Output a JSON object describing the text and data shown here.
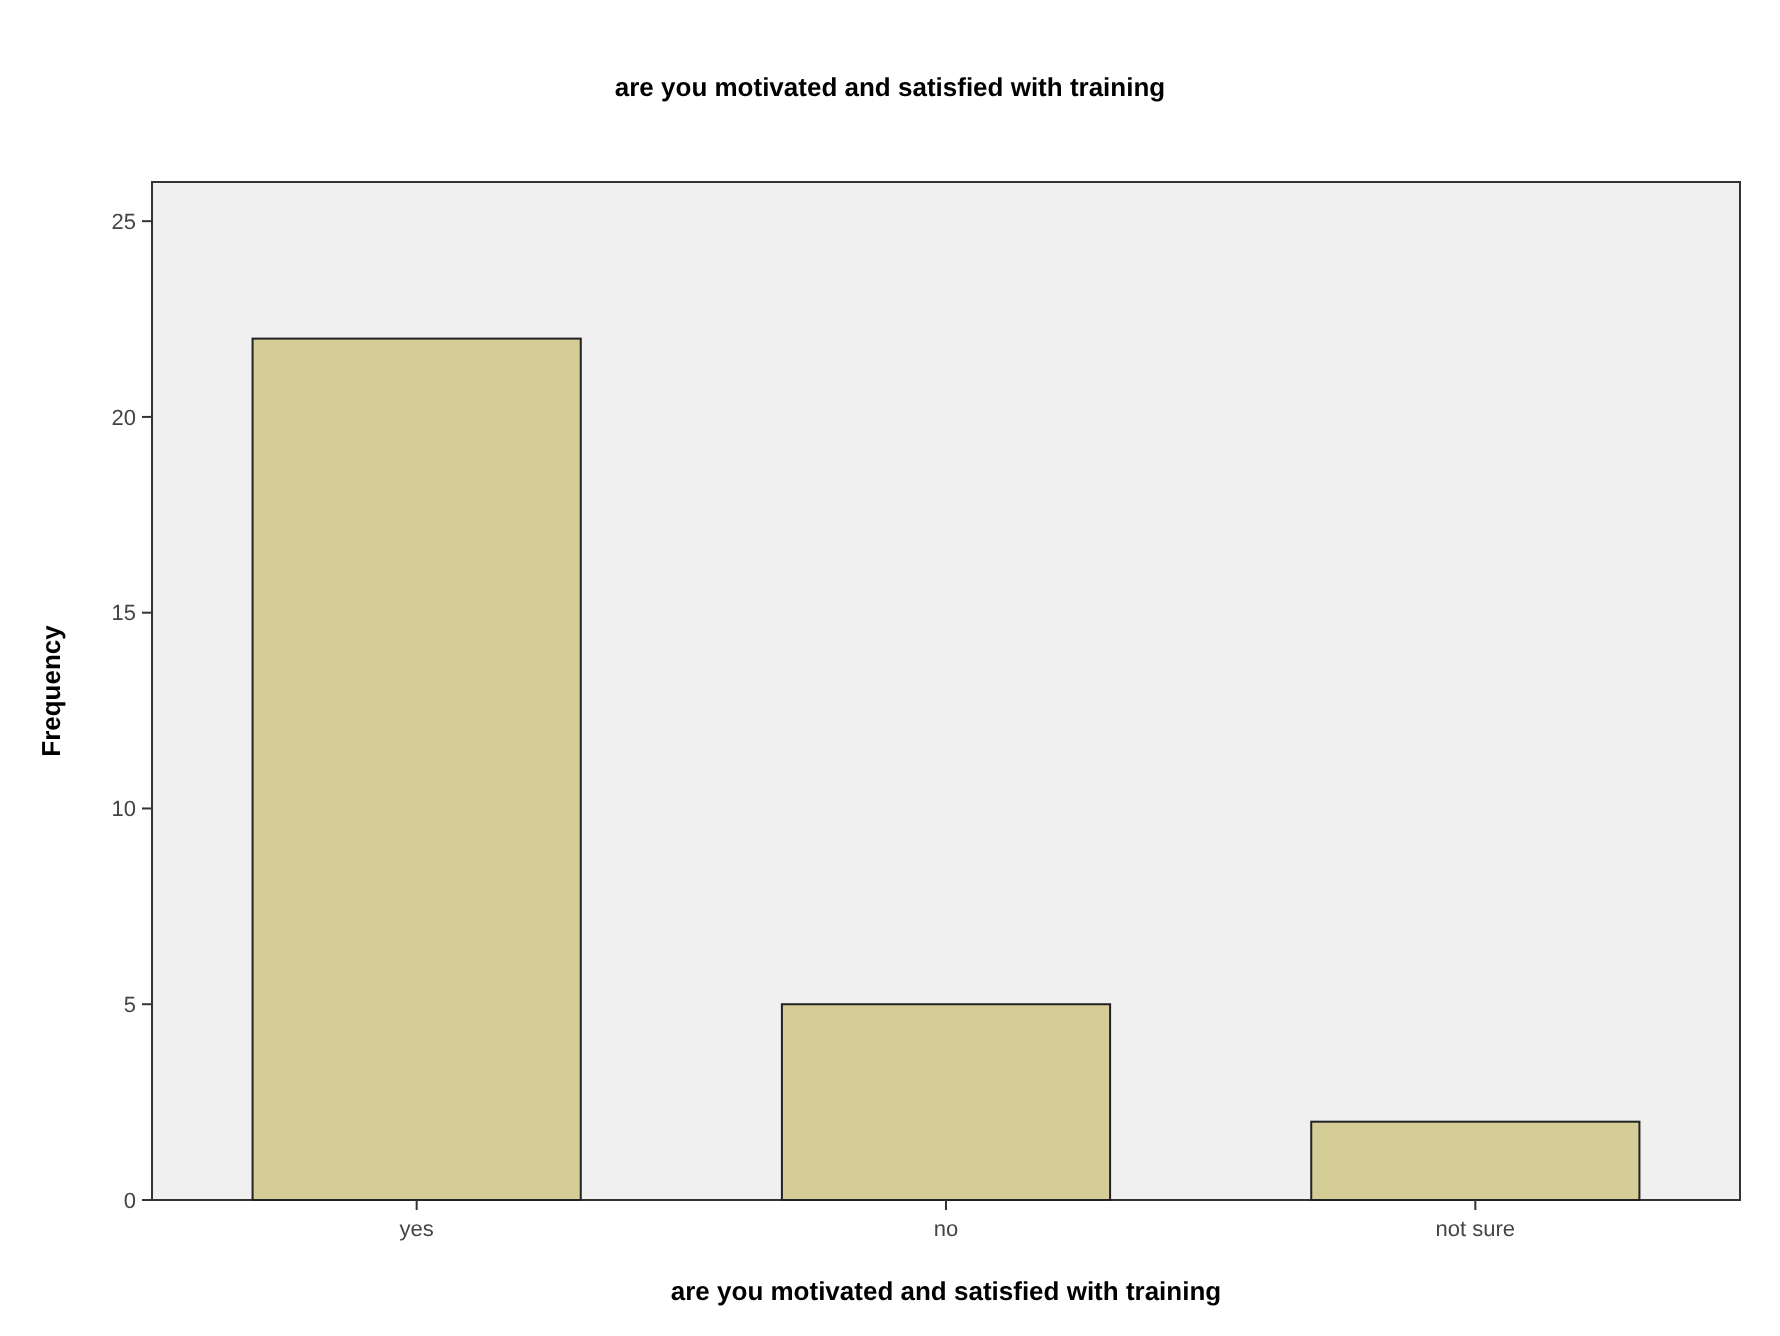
{
  "chart_data": {
    "type": "bar",
    "title": "are you motivated and satisfied with training",
    "xlabel": "are you motivated and satisfied with training",
    "ylabel": "Frequency",
    "categories": [
      "yes",
      "no",
      "not sure"
    ],
    "values": [
      22,
      5,
      2
    ],
    "color": "#d4cd98",
    "ylim": [
      0,
      26
    ],
    "yticks": [
      0,
      5,
      10,
      15,
      20,
      25
    ],
    "grid": false
  }
}
